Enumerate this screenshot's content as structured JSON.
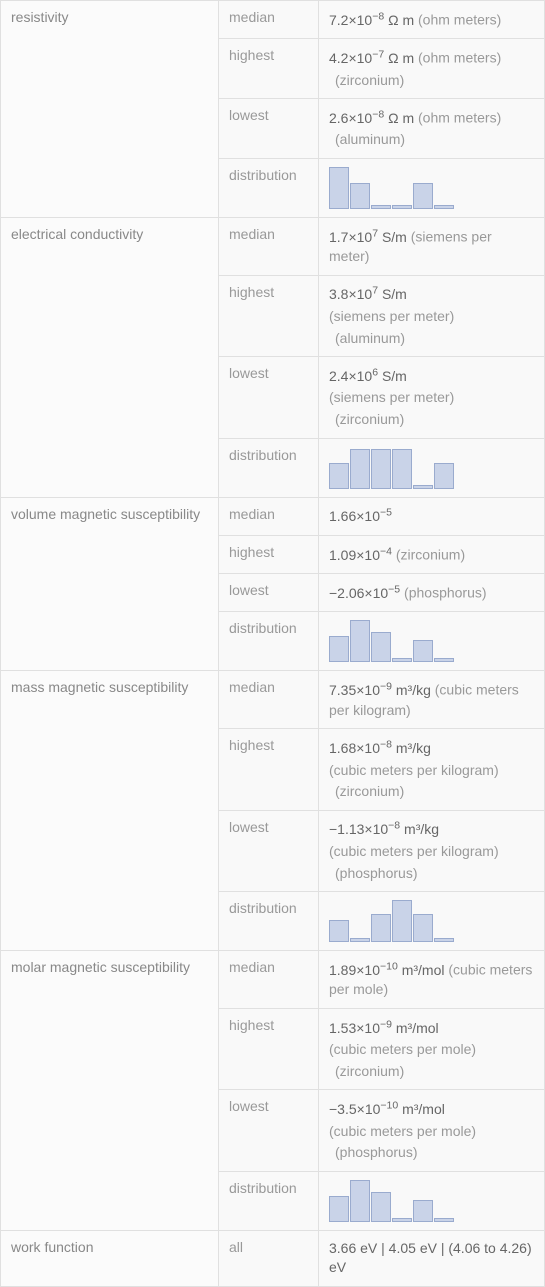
{
  "properties": [
    {
      "name": "resistivity",
      "rows": [
        {
          "stat": "median",
          "value": "7.2×10⁻⁸ Ω m",
          "unit": "(ohm meters)"
        },
        {
          "stat": "highest",
          "value": "4.2×10⁻⁷ Ω m",
          "unit": "(ohm meters)",
          "detail": "(zirconium)"
        },
        {
          "stat": "lowest",
          "value": "2.6×10⁻⁸ Ω m",
          "unit": "(ohm meters)",
          "detail": "(aluminum)"
        },
        {
          "stat": "distribution",
          "hist": [
            42,
            26,
            4,
            4,
            26,
            4
          ]
        }
      ]
    },
    {
      "name": "electrical conductivity",
      "rows": [
        {
          "stat": "median",
          "value": "1.7×10⁷ S/m",
          "unit": "(siemens per meter)"
        },
        {
          "stat": "highest",
          "value": "3.8×10⁷ S/m",
          "unit_block": "(siemens per meter)",
          "detail": "(aluminum)"
        },
        {
          "stat": "lowest",
          "value": "2.4×10⁶ S/m",
          "unit_block": "(siemens per meter)",
          "detail": "(zirconium)"
        },
        {
          "stat": "distribution",
          "hist": [
            26,
            40,
            40,
            40,
            4,
            26
          ]
        }
      ]
    },
    {
      "name": "volume magnetic susceptibility",
      "rows": [
        {
          "stat": "median",
          "value": "1.66×10⁻⁵"
        },
        {
          "stat": "highest",
          "value": "1.09×10⁻⁴",
          "inline_detail": "(zirconium)"
        },
        {
          "stat": "lowest",
          "value": "−2.06×10⁻⁵",
          "inline_detail": "(phosphorus)"
        },
        {
          "stat": "distribution",
          "hist": [
            26,
            42,
            30,
            4,
            22,
            4
          ]
        }
      ]
    },
    {
      "name": "mass magnetic susceptibility",
      "rows": [
        {
          "stat": "median",
          "value": "7.35×10⁻⁹ m³/kg",
          "unit": "(cubic meters per kilogram)"
        },
        {
          "stat": "highest",
          "value": "1.68×10⁻⁸ m³/kg",
          "unit_block": "(cubic meters per kilogram)",
          "detail": "(zirconium)"
        },
        {
          "stat": "lowest",
          "value": "−1.13×10⁻⁸ m³/kg",
          "unit_block": "(cubic meters per kilogram)",
          "detail": "(phosphorus)"
        },
        {
          "stat": "distribution",
          "hist": [
            22,
            4,
            28,
            42,
            28,
            4
          ]
        }
      ]
    },
    {
      "name": "molar magnetic susceptibility",
      "rows": [
        {
          "stat": "median",
          "value": "1.89×10⁻¹⁰ m³/mol",
          "unit": "(cubic meters per mole)"
        },
        {
          "stat": "highest",
          "value": "1.53×10⁻⁹ m³/mol",
          "unit_block": "(cubic meters per mole)",
          "detail": "(zirconium)"
        },
        {
          "stat": "lowest",
          "value": "−3.5×10⁻¹⁰ m³/mol",
          "unit_block": "(cubic meters per mole)",
          "detail": "(phosphorus)"
        },
        {
          "stat": "distribution",
          "hist": [
            26,
            42,
            30,
            4,
            22,
            4
          ]
        }
      ]
    },
    {
      "name": "work function",
      "rows": [
        {
          "stat": "all",
          "value": "3.66 eV  |  4.05 eV  |  (4.06 to 4.26) eV"
        }
      ]
    }
  ],
  "colors": {
    "bar_fill": "#c9d3e8",
    "bar_border": "#9aabce",
    "cell_bg": "#f9f9f9",
    "border": "#e0e0e0",
    "text": "#666",
    "muted": "#999"
  }
}
